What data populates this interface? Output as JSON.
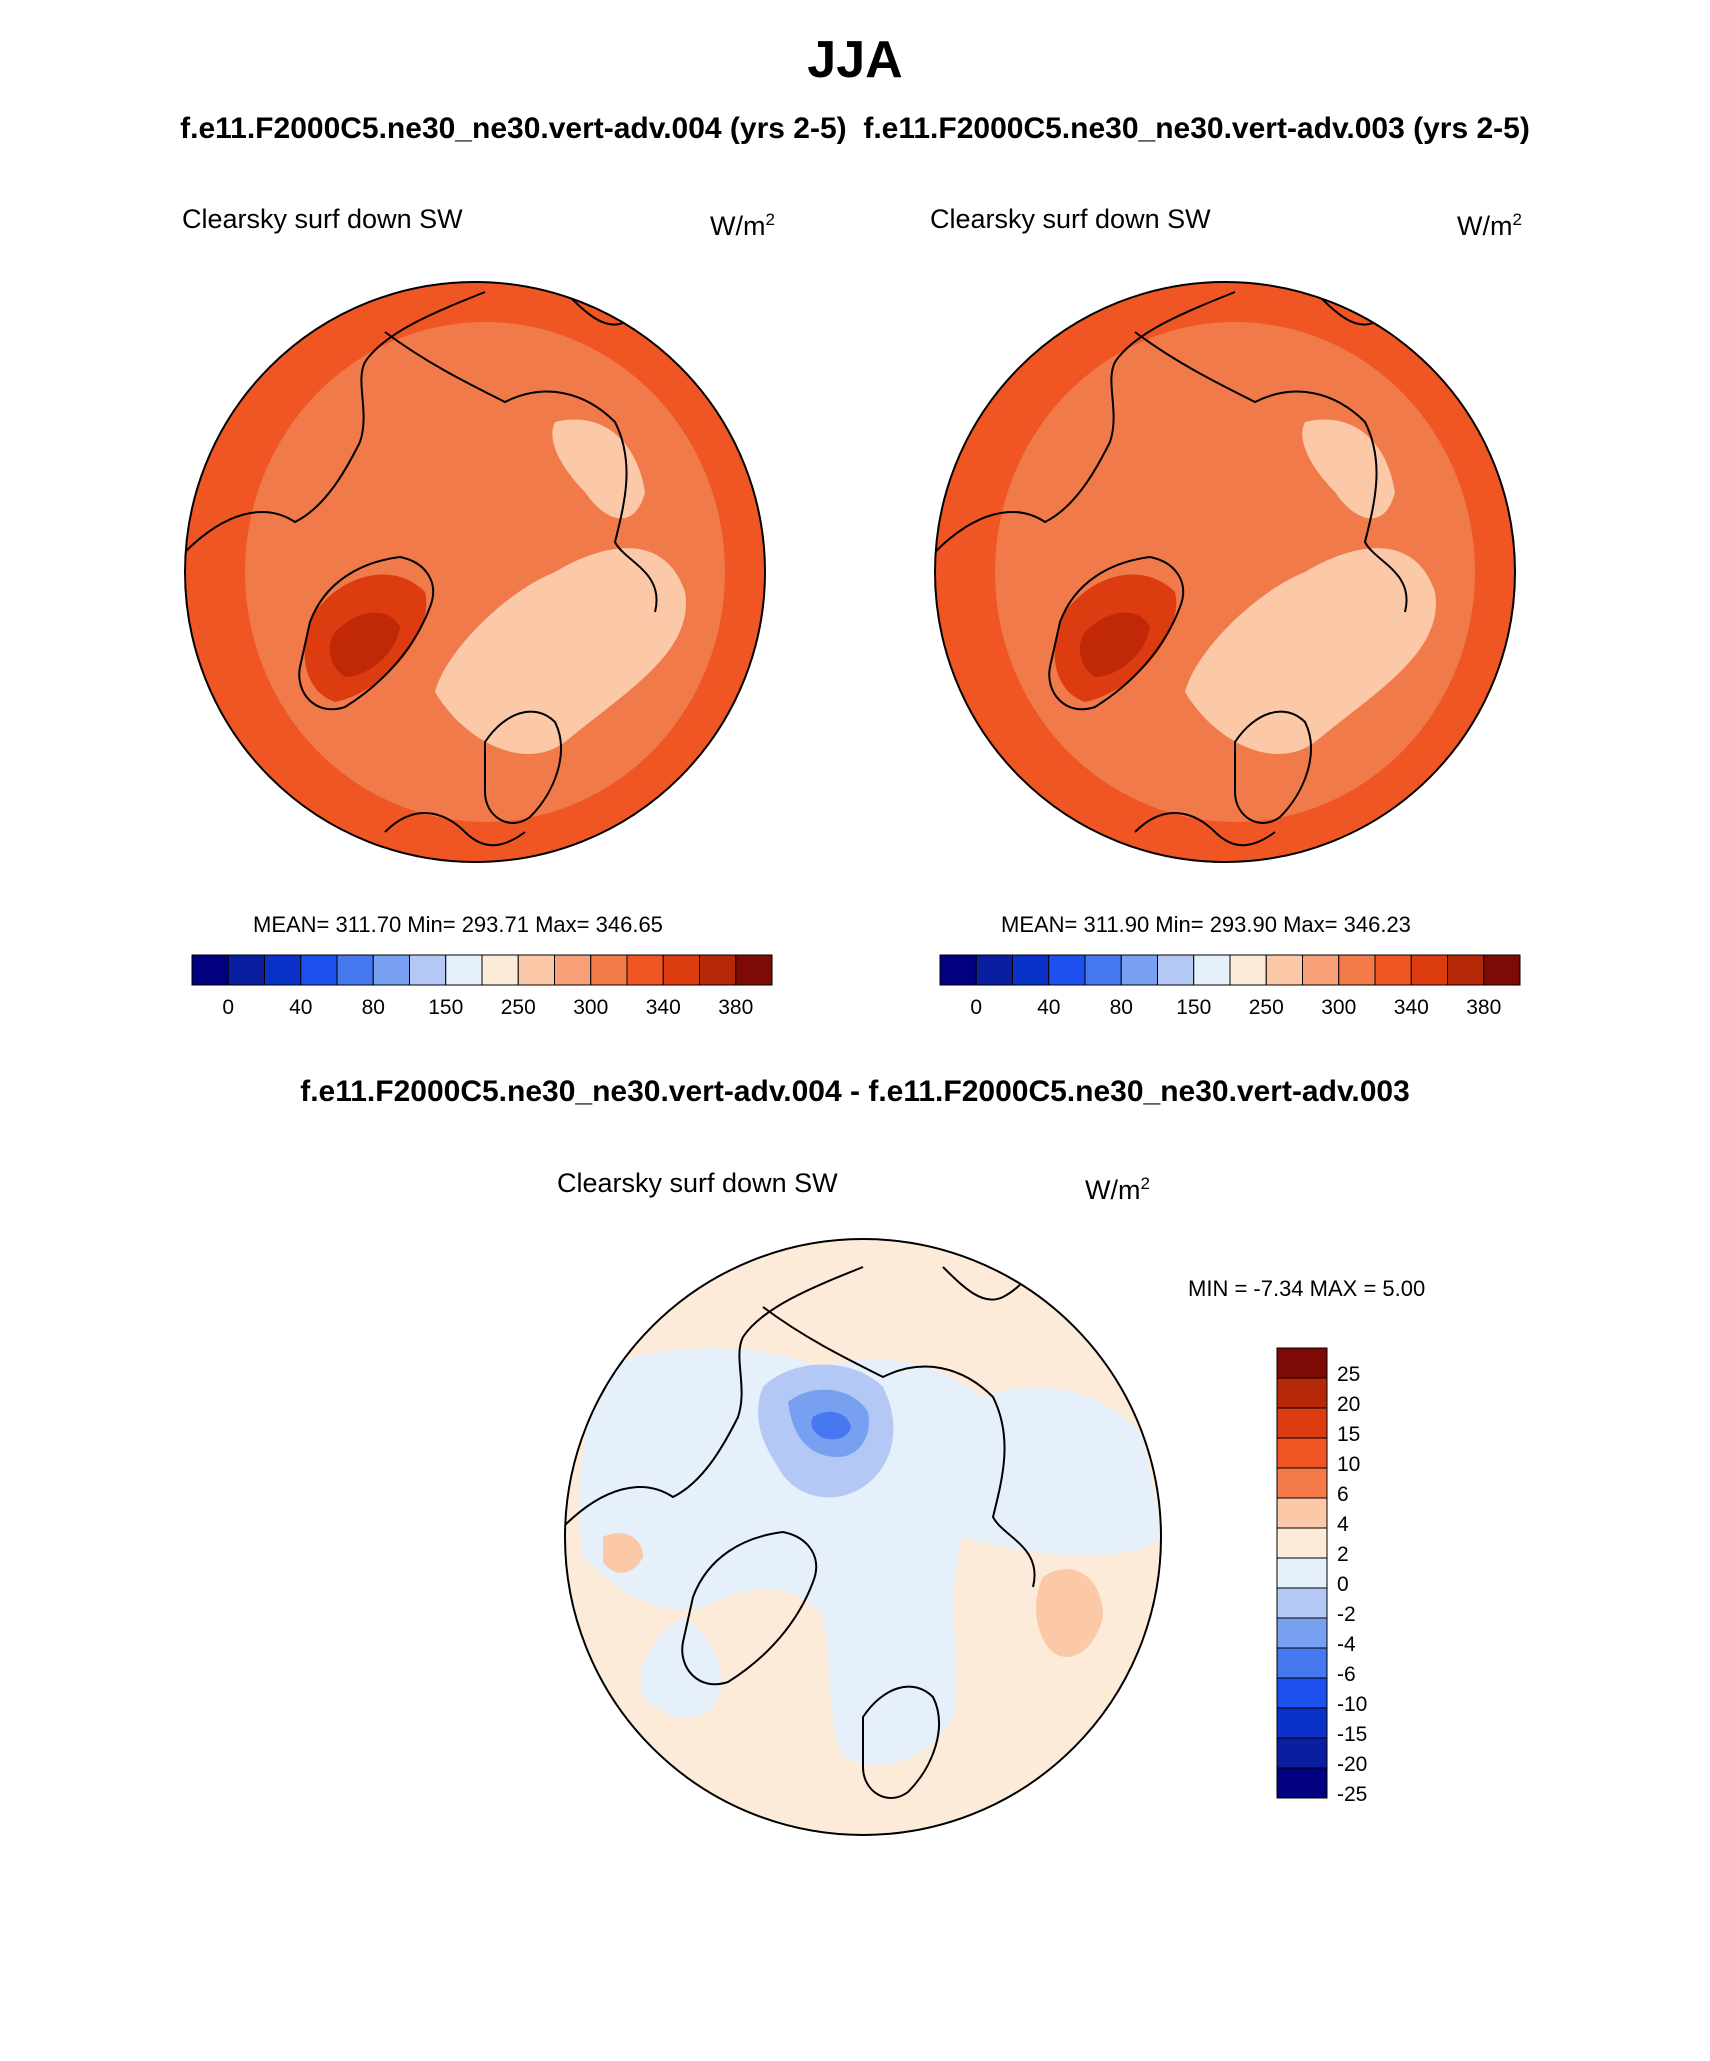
{
  "title": "JJA",
  "subtitle_left": "f.e11.F2000C5.ne30_ne30.vert-adv.004 (yrs 2-5)",
  "subtitle_right": "f.e11.F2000C5.ne30_ne30.vert-adv.003 (yrs 2-5)",
  "diff_title": "f.e11.F2000C5.ne30_ne30.vert-adv.004 - f.e11.F2000C5.ne30_ne30.vert-adv.003",
  "panels": [
    {
      "variable": "Clearsky surf down SW",
      "units_base": "W/m",
      "units_exp": "2",
      "stats": "MEAN= 311.70  Min= 293.71  Max= 346.65"
    },
    {
      "variable": "Clearsky surf down SW",
      "units_base": "W/m",
      "units_exp": "2",
      "stats": "MEAN= 311.90  Min= 293.90  Max= 346.23"
    }
  ],
  "diff_panel": {
    "variable": "Clearsky surf down SW",
    "units_base": "W/m",
    "units_exp": "2",
    "minmax": "MIN =  -7.34 MAX =   5.00"
  },
  "colorbar_abs": {
    "colors": [
      "#000080",
      "#0a1ea0",
      "#0a32c8",
      "#1e50f0",
      "#4678f0",
      "#78a0f0",
      "#b4c8f5",
      "#e6f0fb",
      "#fdebd9",
      "#fbc8a8",
      "#f8a078",
      "#f57a4a",
      "#f05524",
      "#dc3c10",
      "#b42808",
      "#7d0a04"
    ],
    "tick_labels": [
      "0",
      "40",
      "80",
      "150",
      "250",
      "300",
      "340",
      "380"
    ]
  },
  "colorbar_diff": {
    "colors": [
      "#7d0a04",
      "#b42808",
      "#dc3c10",
      "#f05524",
      "#f57a4a",
      "#fbc8a8",
      "#fdebd9",
      "#e6f0fb",
      "#b4c8f5",
      "#78a0f0",
      "#4678f0",
      "#1e50f0",
      "#0a32c8",
      "#0a1ea0",
      "#000080"
    ],
    "tick_labels": [
      "25",
      "20",
      "15",
      "10",
      "6",
      "4",
      "2",
      "0",
      "-2",
      "-4",
      "-6",
      "-10",
      "-15",
      "-20",
      "-25"
    ]
  },
  "map_colors": {
    "base": "#f07a4a",
    "edge": "#f05524",
    "light": "#fbc8a8",
    "dark": "#dc3c10",
    "darkest": "#c02808",
    "diff_base": "#fdebd9",
    "diff_blue": "#e6f0fb",
    "diff_blue2": "#b4c8f5",
    "diff_blue3": "#78a0f0",
    "diff_blue4": "#4678f0",
    "diff_orange": "#fbc8a8"
  }
}
